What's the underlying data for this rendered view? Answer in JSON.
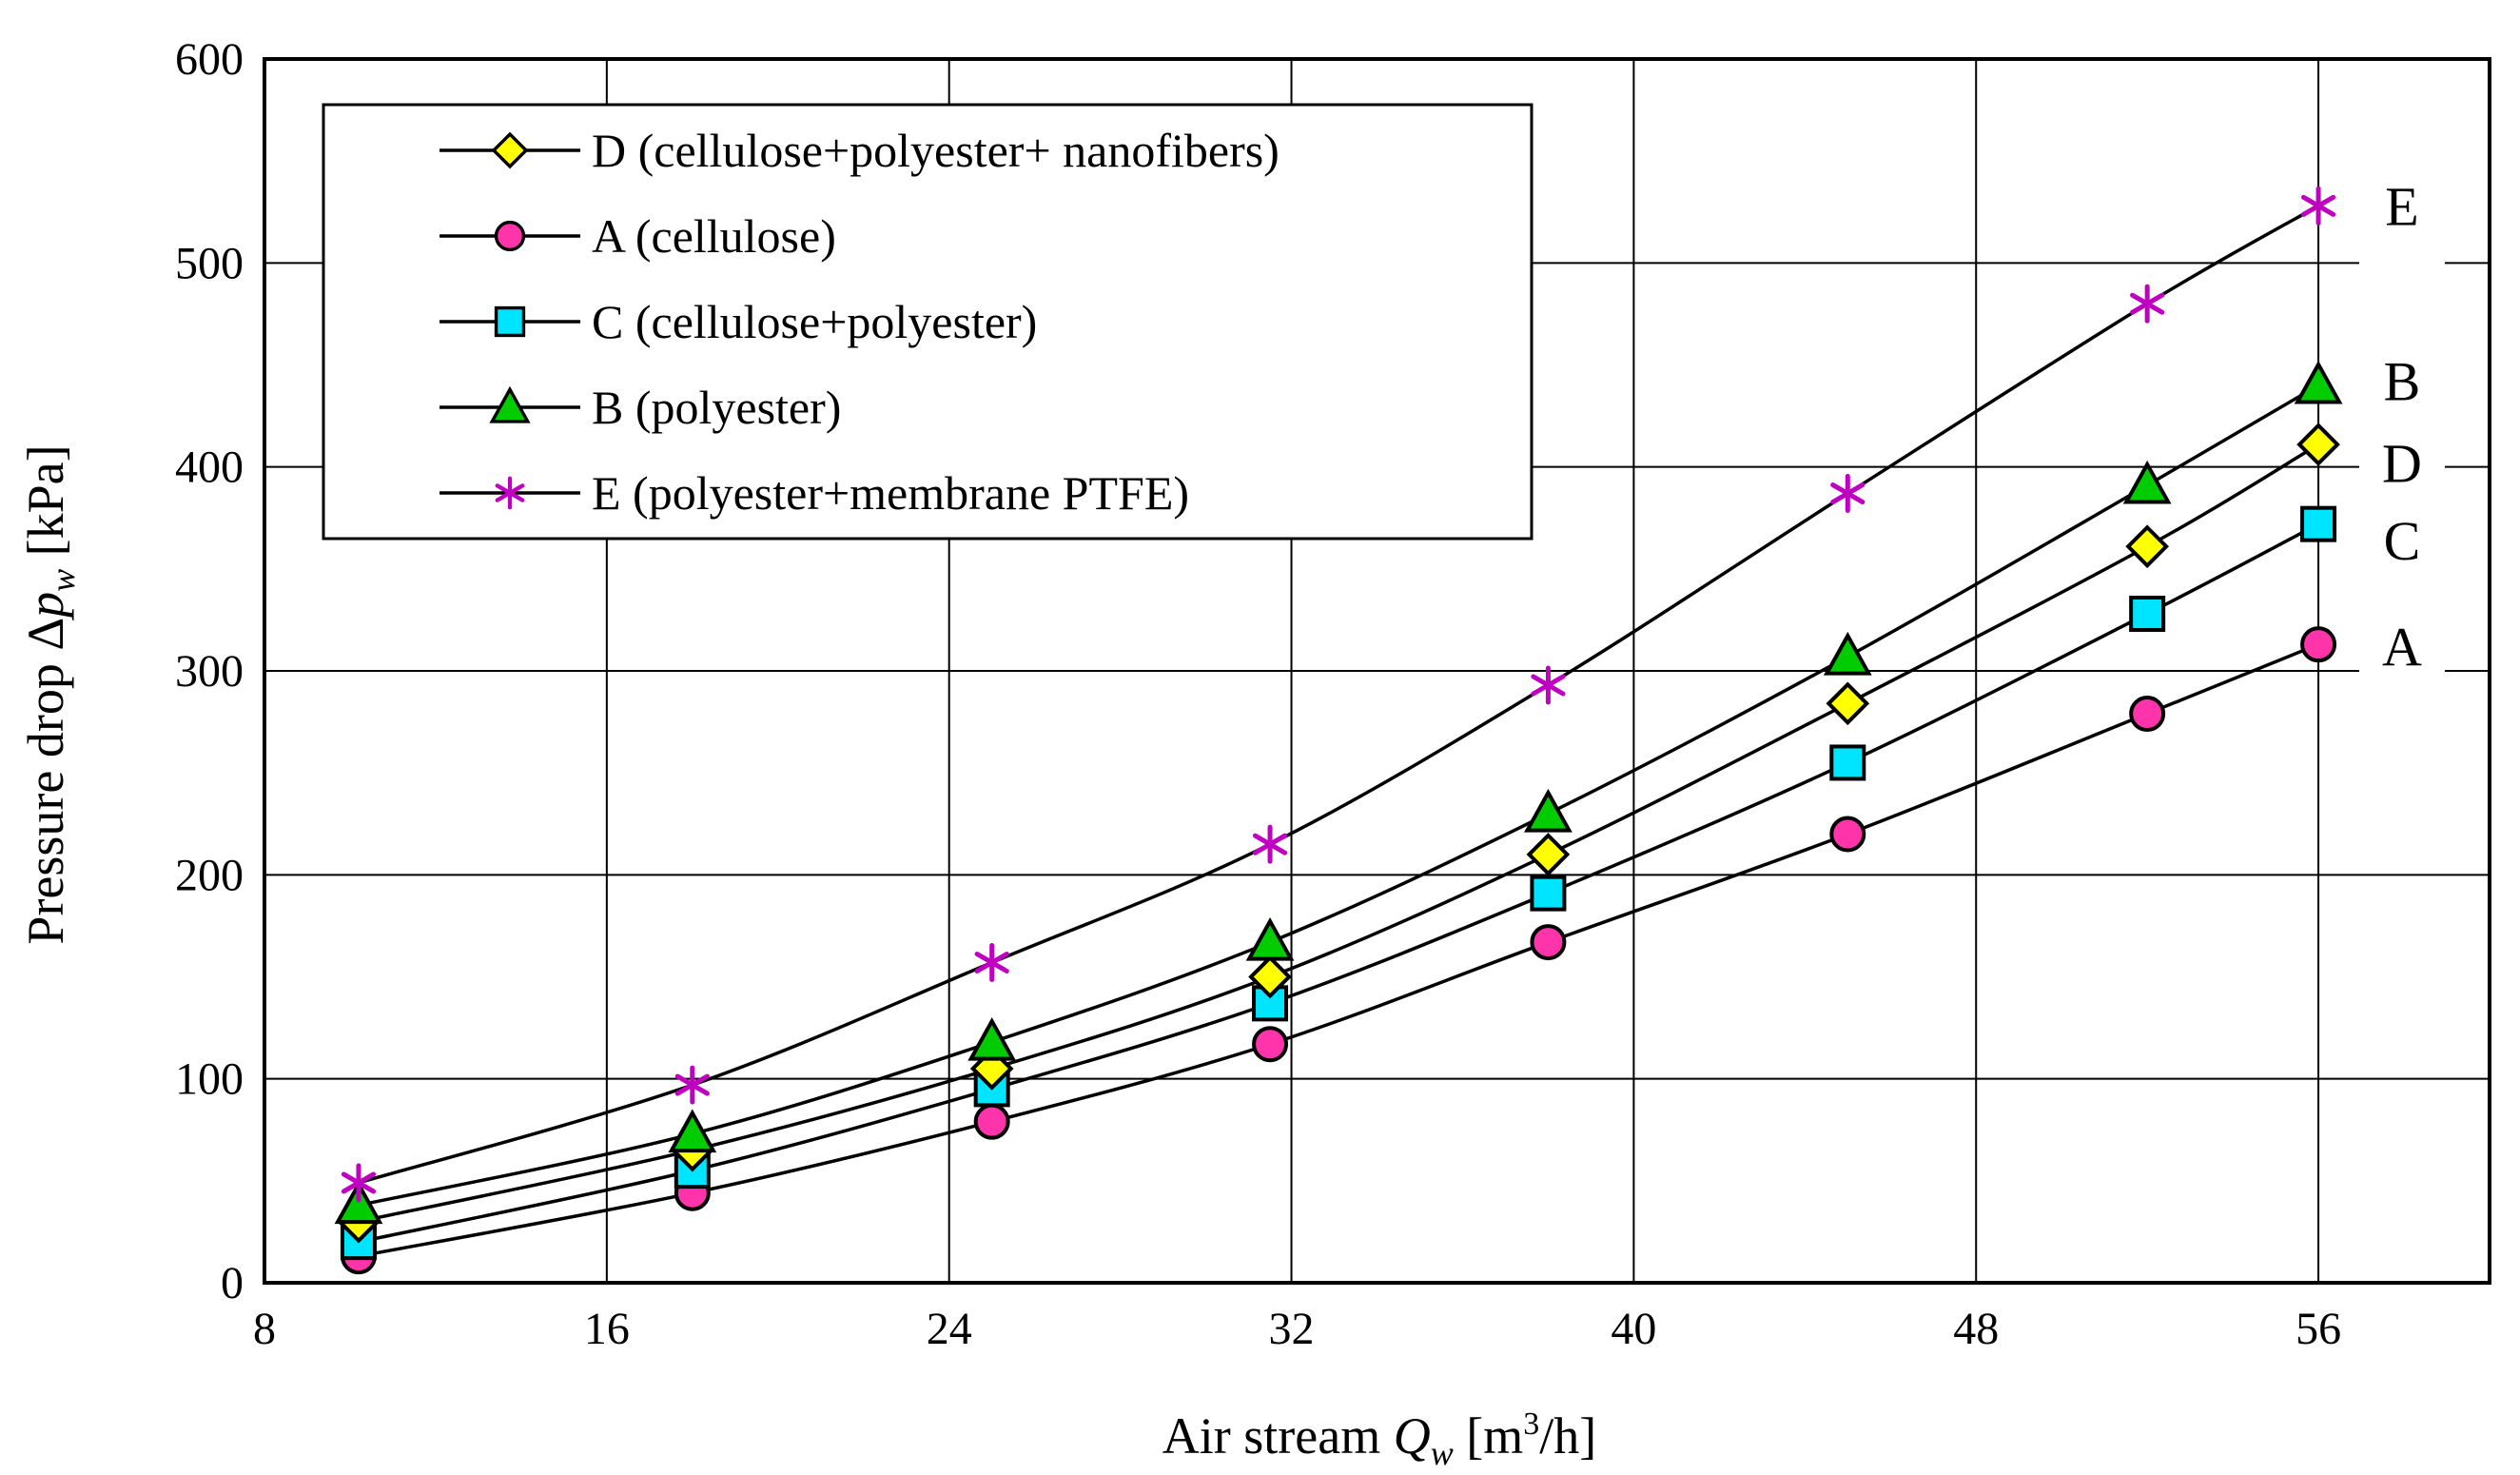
{
  "chart_data": {
    "type": "line",
    "xlabel": "Air stream",
    "xlabel_symbol": "Q",
    "xlabel_subscript": "w",
    "xlabel_units_prefix": "[m",
    "xlabel_units_sup": "3",
    "xlabel_units_suffix": "/h]",
    "ylabel": "Pressure drop Δ",
    "ylabel_symbol": "p",
    "ylabel_subscript": "w",
    "ylabel_units": "[kPa]",
    "xlim": [
      8,
      60
    ],
    "ylim": [
      0,
      600
    ],
    "xticks": [
      8,
      16,
      24,
      32,
      40,
      48,
      56
    ],
    "yticks": [
      0,
      100,
      200,
      300,
      400,
      500,
      600
    ],
    "grid": true,
    "legend_position": "top-left",
    "x": [
      10.2,
      18,
      25,
      31.5,
      38,
      45,
      52,
      56
    ],
    "series": [
      {
        "id": "D",
        "name": "D (cellulose+polyester+ nanofibers)",
        "end_label": "D",
        "marker": "diamond",
        "color": "#ffff00",
        "values": [
          30,
          65,
          105,
          150,
          210,
          284,
          361,
          411
        ]
      },
      {
        "id": "A",
        "name": "A (cellulose)",
        "end_label": "A",
        "marker": "circle",
        "color": "#ff33aa",
        "values": [
          13,
          44,
          79,
          117,
          167,
          220,
          279,
          313
        ]
      },
      {
        "id": "C",
        "name": "C (cellulose+polyester)",
        "end_label": "C",
        "marker": "square",
        "color": "#00e5ff",
        "values": [
          20,
          55,
          95,
          137,
          191,
          255,
          328,
          372
        ]
      },
      {
        "id": "B",
        "name": "B (polyester)",
        "end_label": "B",
        "marker": "triangle",
        "color": "#00cc00",
        "values": [
          38,
          73,
          118,
          167,
          230,
          307,
          391,
          440
        ]
      },
      {
        "id": "E",
        "name": "E (polyester+membrane PTFE)",
        "end_label": "E",
        "marker": "star",
        "color": "#c000c0",
        "values": [
          49,
          97,
          157,
          215,
          293,
          387,
          480,
          528
        ]
      }
    ]
  }
}
